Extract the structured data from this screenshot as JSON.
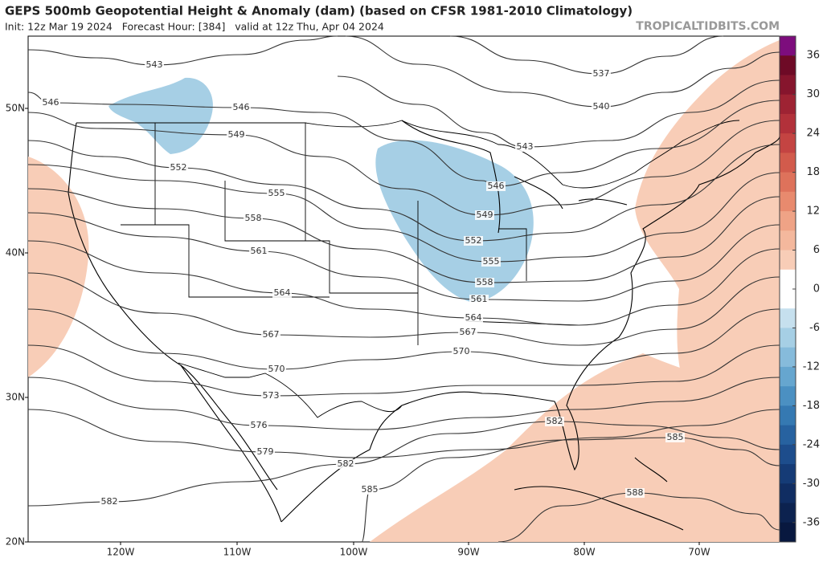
{
  "title": "GEPS 500mb Geopotential Height & Anomaly (dam) (based on CFSR 1981-2010 Climatology)",
  "subtitle": "Init: 12z Mar 19 2024   Forecast Hour: [384]   valid at 12z Thu, Apr 04 2024",
  "source": "TROPICALTIDBITS.COM",
  "lat_labels": [
    "50N",
    "40N",
    "30N",
    "20N"
  ],
  "lon_labels": [
    "120W",
    "110W",
    "100W",
    "90W",
    "80W",
    "70W"
  ],
  "colorbar": {
    "ticks": [
      36,
      30,
      24,
      18,
      12,
      6,
      0,
      -6,
      -12,
      -18,
      -24,
      -30,
      -36
    ],
    "colors": [
      "#7d0d7d",
      "#6e0a26",
      "#86152d",
      "#9e2333",
      "#b2313a",
      "#c44442",
      "#d25b4c",
      "#de725b",
      "#e88a6e",
      "#efa386",
      "#f4b89d",
      "#f8cdb7",
      "#ffffff",
      "#ffffff",
      "#c6e0ee",
      "#a6cfe5",
      "#86bbdb",
      "#66a6cf",
      "#4b90c2",
      "#3579b2",
      "#2762a0",
      "#1d4d8c",
      "#153b76",
      "#102d62",
      "#0c224f",
      "#08183f"
    ]
  },
  "contour_labels": [
    "543",
    "537",
    "540",
    "546",
    "546",
    "549",
    "543",
    "552",
    "546",
    "555",
    "549",
    "558",
    "552",
    "561",
    "555",
    "558",
    "564",
    "561",
    "564",
    "567",
    "567",
    "570",
    "570",
    "573",
    "576",
    "582",
    "579",
    "585",
    "582",
    "585",
    "588",
    "582"
  ]
}
